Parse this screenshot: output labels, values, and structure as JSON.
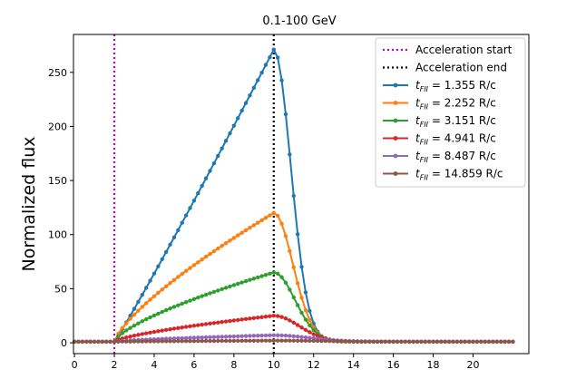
{
  "chart_data": {
    "type": "line",
    "title": "0.1-100 GeV",
    "xlabel": "",
    "ylabel": "Normalized flux",
    "xlim": [
      -0.05,
      22.8
    ],
    "ylim": [
      -10,
      285
    ],
    "xticks": [
      0,
      2,
      4,
      6,
      8,
      10,
      12,
      14,
      16,
      18,
      20
    ],
    "yticks": [
      0,
      50,
      100,
      150,
      200,
      250
    ],
    "vlines": [
      {
        "name": "Acceleration start",
        "x": 2,
        "color": "#c000c0",
        "style": "dotted"
      },
      {
        "name": "Acceleration end",
        "x": 10,
        "color": "#000000",
        "style": "dotted"
      }
    ],
    "series": [
      {
        "name": "= 1.355 R/c",
        "sub": "FII",
        "color": "#1f77b4",
        "peak": 271,
        "decay": 1.2
      },
      {
        "name": "= 2.252 R/c",
        "sub": "FII",
        "color": "#ff7f0e",
        "peak": 120,
        "decay": 1.35
      },
      {
        "name": "= 3.151 R/c",
        "sub": "FII",
        "color": "#2ca02c",
        "peak": 65,
        "decay": 1.5
      },
      {
        "name": "= 4.941 R/c",
        "sub": "FII",
        "color": "#d62728",
        "peak": 25,
        "decay": 1.8
      },
      {
        "name": "= 8.487 R/c",
        "sub": "FII",
        "color": "#9467bd",
        "peak": 7,
        "decay": 2.5
      },
      {
        "name": "= 14.859 R/c",
        "sub": "FII",
        "color": "#8c564b",
        "peak": 2,
        "decay": 4
      }
    ],
    "x_start": 0,
    "x_end": 22,
    "x_step": 0.2,
    "baseline": 1,
    "legend_position": "top-right"
  }
}
